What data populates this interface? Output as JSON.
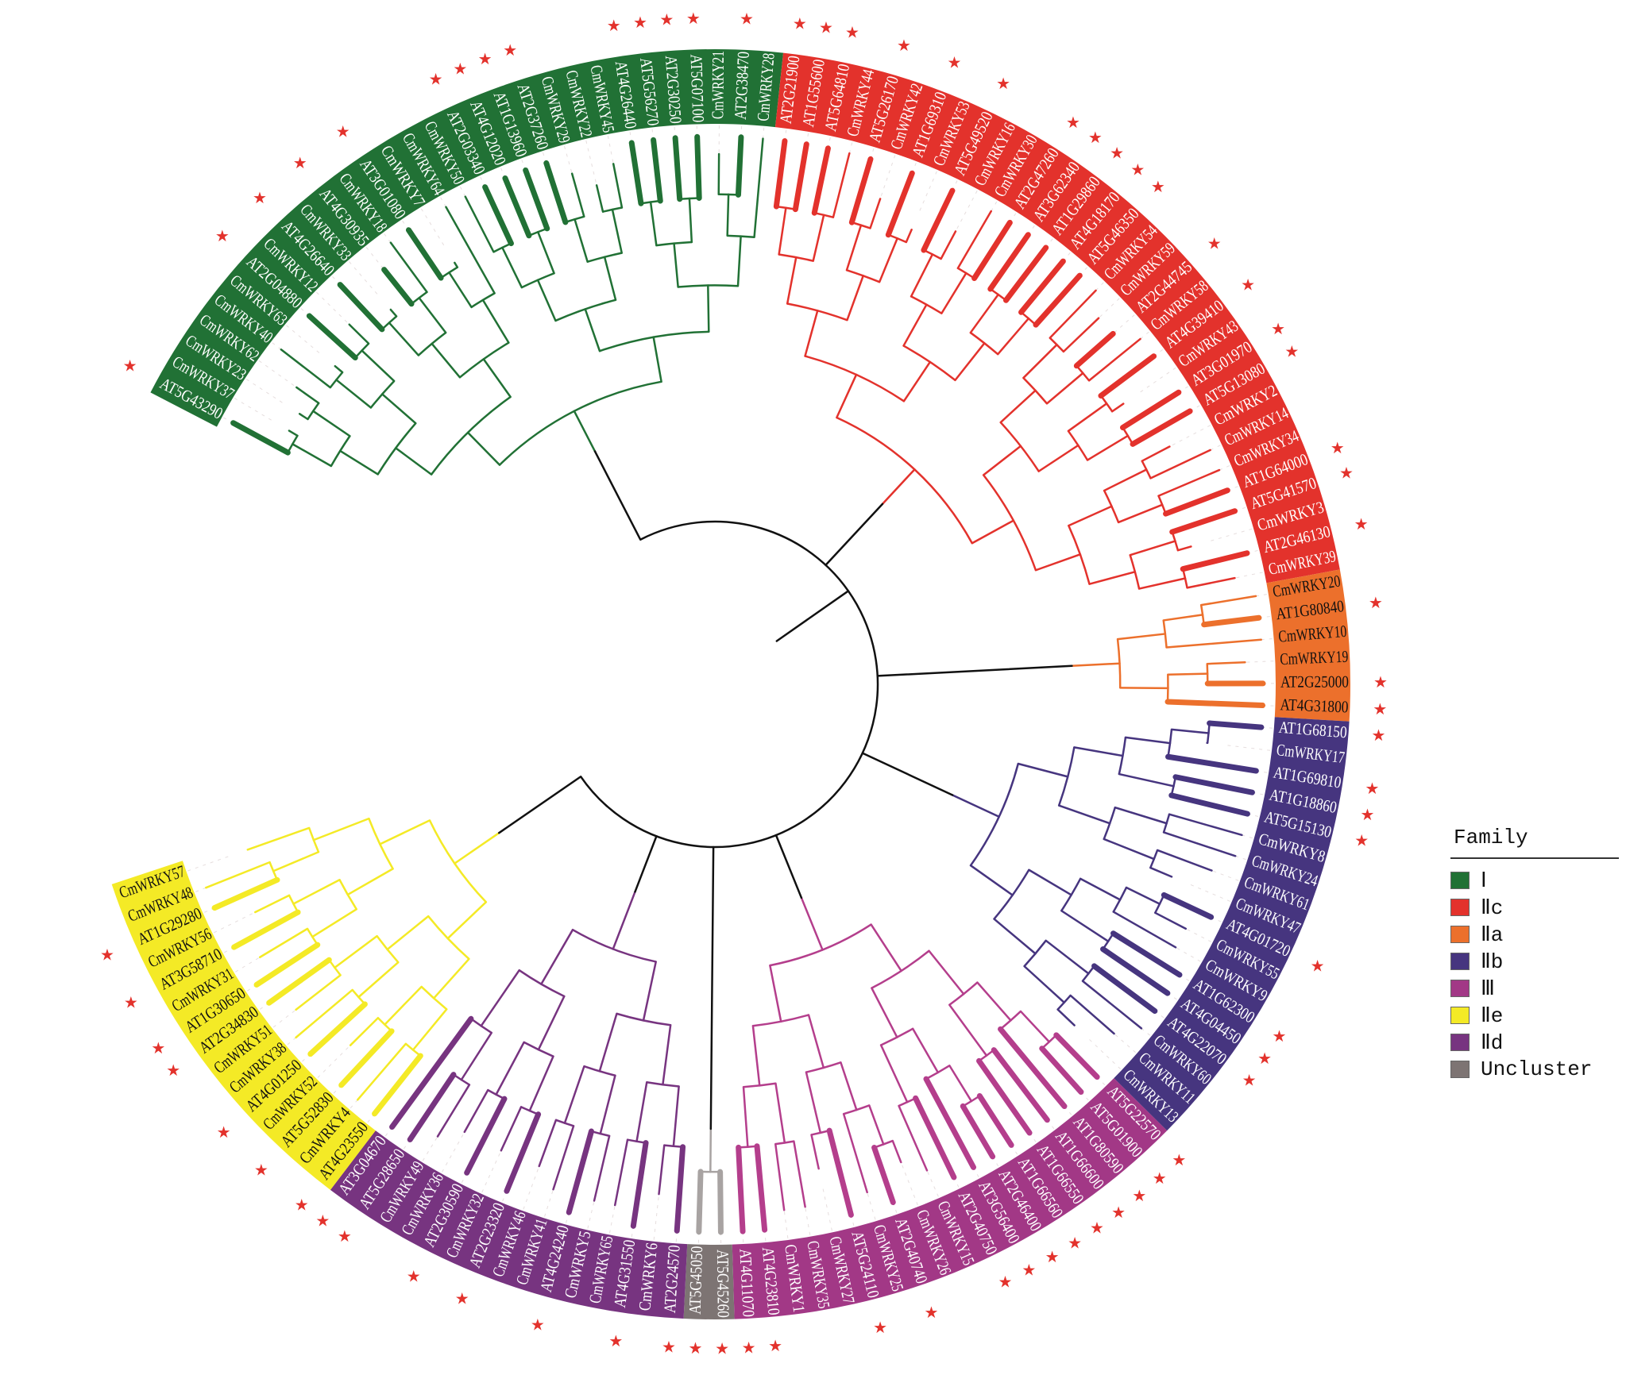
{
  "legend": {
    "title": "Family",
    "items": [
      {
        "key": "I",
        "label": "Ⅰ",
        "color": "#217135"
      },
      {
        "key": "IIc",
        "label": "Ⅱc",
        "color": "#e3322c"
      },
      {
        "key": "IIa",
        "label": "Ⅱa",
        "color": "#ec702c"
      },
      {
        "key": "IIb",
        "label": "Ⅱb",
        "color": "#46357f"
      },
      {
        "key": "III",
        "label": "Ⅲ",
        "color": "#a23886"
      },
      {
        "key": "IIe",
        "label": "Ⅱe",
        "color": "#f4ea26"
      },
      {
        "key": "IId",
        "label": "Ⅱd",
        "color": "#773480"
      },
      {
        "key": "Uncluster",
        "label": "Uncluster",
        "color": "#7d7473"
      }
    ]
  },
  "branch_colors": {
    "I": "#217135",
    "IIc": "#e3322c",
    "IIa": "#ec702c",
    "IIb": "#46357f",
    "III": "#b43e8c",
    "IIe": "#f4ea26",
    "IId": "#773480",
    "Uncluster": "#a8a3a2",
    "root": "#111111"
  },
  "label_text_colors": {
    "I": "#ffffff",
    "IIc": "#ffffff",
    "IIa": "#111111",
    "IIb": "#ffffff",
    "III": "#ffffff",
    "IIe": "#111111",
    "IId": "#ffffff",
    "Uncluster": "#ffffff"
  },
  "star_color": "#e3322c",
  "star_meaning": "Arabidopsis (AT) gene",
  "clades": [
    {
      "family": "I",
      "leaves": [
        "AT5G43290",
        "CmWRKY37",
        "CmWRKY23",
        "CmWRKY62",
        "CmWRKY40",
        "CmWRKY63",
        "AT2G04880",
        "CmWRKY12",
        "AT4G26640",
        "CmWRKY33",
        "AT4G30935",
        "CmWRKY18",
        "AT3G01080",
        "CmWRKY7",
        "CmWRKY64",
        "CmWRKY50",
        "AT2G03340",
        "AT4G12020",
        "AT1G13960",
        "AT2G37260",
        "CmWRKY29",
        "CmWRKY22",
        "CmWRKY45",
        "AT4G26440",
        "AT5G56270",
        "AT2G30250",
        "AT5G07100",
        "CmWRKY21",
        "AT2G38470",
        "CmWRKY28"
      ]
    },
    {
      "family": "IIc",
      "leaves": [
        "AT2G21900",
        "AT1G55600",
        "AT5G64810",
        "CmWRKY44",
        "AT5G26170",
        "CmWRKY42",
        "AT1G69310",
        "CmWRKY53",
        "AT5G49520",
        "CmWRKY16",
        "CmWRKY30",
        "AT2G47260",
        "AT3G62340",
        "AT1G29860",
        "AT4G18170",
        "AT5G46350",
        "CmWRKY54",
        "CmWRKY59",
        "AT2G44745",
        "CmWRKY58",
        "AT4G39410",
        "CmWRKY43",
        "AT3G01970",
        "AT5G13080",
        "CmWRKY2",
        "CmWRKY14",
        "CmWRKY34",
        "AT1G64000",
        "AT5G41570",
        "CmWRKY3",
        "AT2G46130",
        "CmWRKY39"
      ]
    },
    {
      "family": "IIa",
      "leaves": [
        "CmWRKY20",
        "AT1G80840",
        "CmWRKY10",
        "CmWRKY19",
        "AT2G25000",
        "AT4G31800"
      ]
    },
    {
      "family": "IIb",
      "leaves": [
        "AT1G68150",
        "CmWRKY17",
        "AT1G69810",
        "AT1G18860",
        "AT5G15130",
        "CmWRKY8",
        "CmWRKY24",
        "CmWRKY61",
        "CmWRKY47",
        "AT4G01720",
        "CmWRKY55",
        "CmWRKY9",
        "AT1G62300",
        "AT4G04450",
        "AT4G22070",
        "CmWRKY60",
        "CmWRKY11",
        "CmWRKY13"
      ]
    },
    {
      "family": "III",
      "leaves": [
        "AT5G22570",
        "AT5G01900",
        "AT1G80590",
        "AT1G66600",
        "AT1G66550",
        "AT1G66560",
        "AT2G46400",
        "AT3G56400",
        "AT2G40750",
        "CmWRKY15",
        "CmWRKY26",
        "AT2G40740",
        "CmWRKY25",
        "AT5G24110",
        "CmWRKY27",
        "CmWRKY35",
        "CmWRKY1",
        "AT4G23810",
        "AT4G11070"
      ]
    },
    {
      "family": "Uncluster",
      "leaves": [
        "AT5G45260",
        "AT5G45050"
      ]
    },
    {
      "family": "IId",
      "leaves": [
        "AT2G24570",
        "CmWRKY6",
        "AT4G31550",
        "CmWRKY65",
        "CmWRKY5",
        "AT4G24240",
        "CmWRKY41",
        "CmWRKY46",
        "AT2G23320",
        "CmWRKY32",
        "AT2G30590",
        "CmWRKY36",
        "CmWRKY49",
        "AT5G28650",
        "AT3G04670"
      ]
    },
    {
      "family": "IIe",
      "leaves": [
        "AT4G23550",
        "CmWRKY4",
        "AT5G52830",
        "CmWRKY52",
        "AT4G01250",
        "CmWRKY38",
        "CmWRKY51",
        "AT2G34830",
        "AT1G30650",
        "CmWRKY31",
        "AT3G58710",
        "CmWRKY56",
        "AT1G29280",
        "CmWRKY48",
        "CmWRKY57"
      ]
    }
  ]
}
